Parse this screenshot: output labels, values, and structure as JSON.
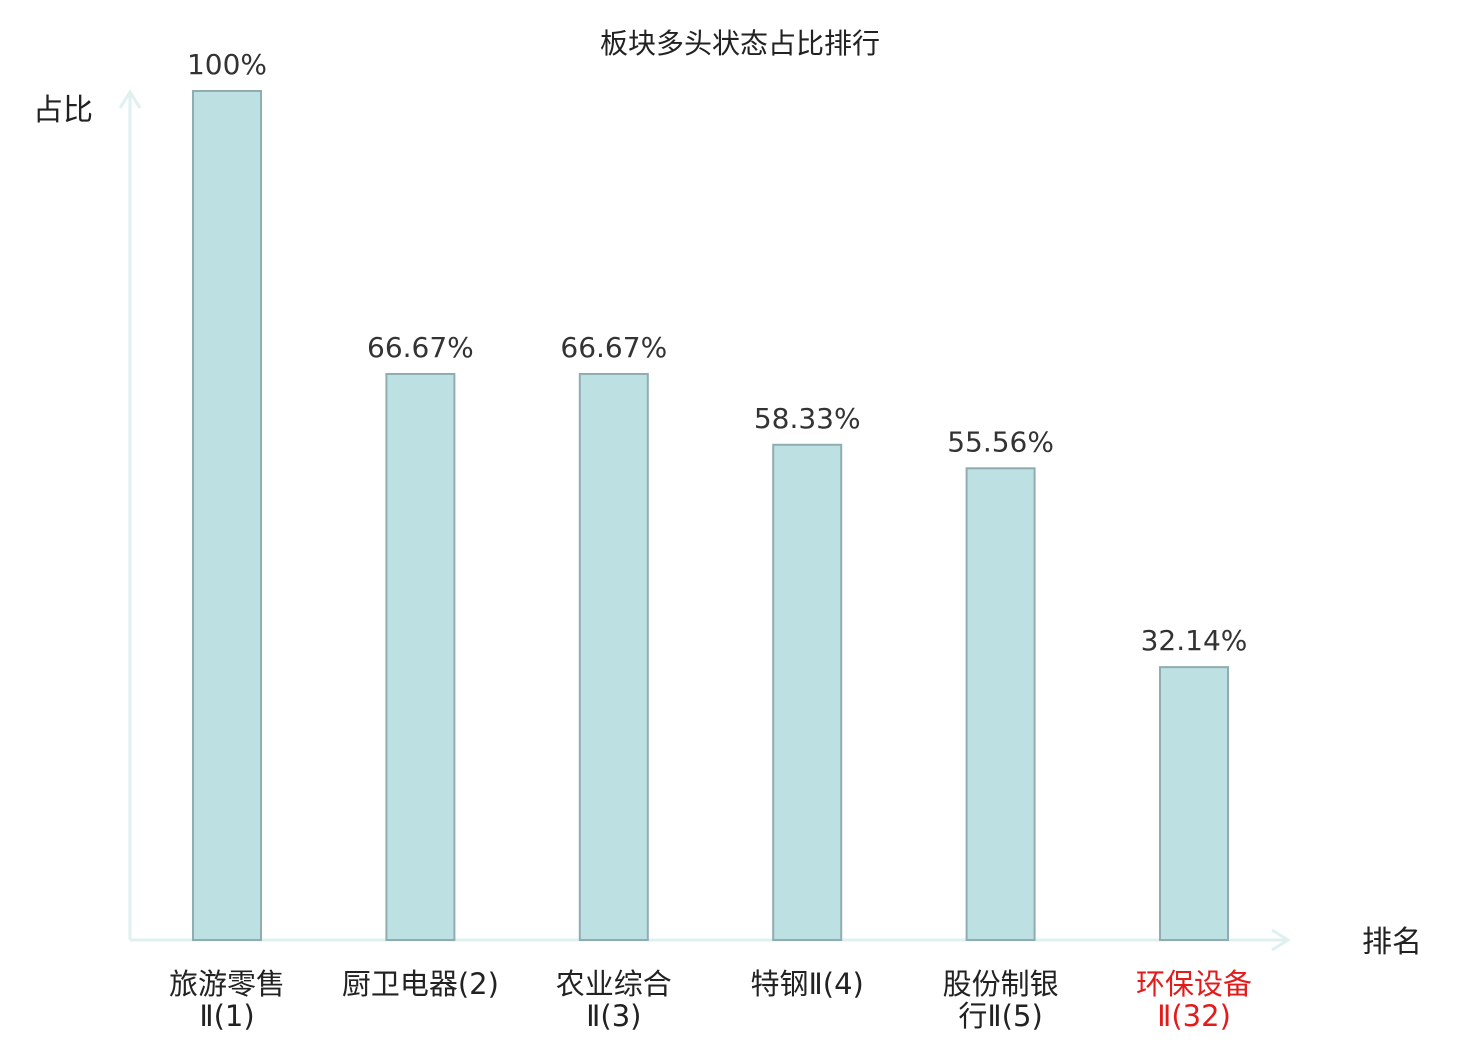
{
  "colors": {
    "bar_fill": "#bde0e3",
    "bar_stroke": "#8fadb0",
    "axis": "#dff1ef",
    "text": "#333333",
    "highlight": "#e31b1b"
  },
  "chart_data": {
    "type": "bar",
    "title": "板块多头状态占比排行",
    "ylabel": "占比",
    "xlabel": "排名",
    "ylim": [
      0,
      100
    ],
    "grid": false,
    "categories": [
      {
        "line1": "旅游零售",
        "line2": "Ⅱ(1)",
        "highlight": false
      },
      {
        "line1": "厨卫电器(2)",
        "line2": "",
        "highlight": false
      },
      {
        "line1": "农业综合",
        "line2": "Ⅱ(3)",
        "highlight": false
      },
      {
        "line1": "特钢Ⅱ(4)",
        "line2": "",
        "highlight": false
      },
      {
        "line1": "股份制银",
        "line2": "行Ⅱ(5)",
        "highlight": false
      },
      {
        "line1": "环保设备",
        "line2": "Ⅱ(32)",
        "highlight": true
      }
    ],
    "values": [
      100,
      66.67,
      66.67,
      58.33,
      55.56,
      32.14
    ],
    "value_labels": [
      "100%",
      "66.67%",
      "66.67%",
      "58.33%",
      "55.56%",
      "32.14%"
    ]
  }
}
